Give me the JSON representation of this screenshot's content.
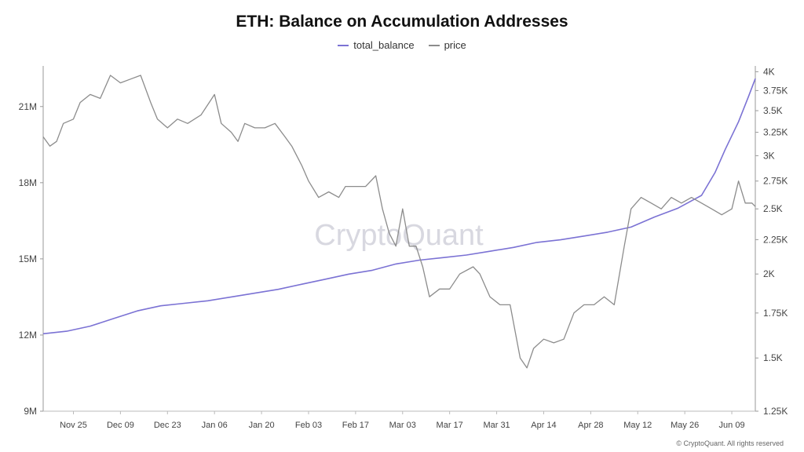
{
  "title": "ETH: Balance on Accumulation Addresses",
  "footer": "© CryptoQuant. All rights reserved",
  "watermark": "CryptoQuant",
  "colors": {
    "total_balance": "#7b72d4",
    "price": "#8c8c8c",
    "axis": "#999999"
  },
  "chart_data": {
    "type": "line",
    "title": "ETH: Balance on Accumulation Addresses",
    "legend_position": "top-center",
    "grid": false,
    "x_ticks": [
      "Nov 25",
      "Dec 09",
      "Dec 23",
      "Jan 06",
      "Jan 20",
      "Feb 03",
      "Feb 17",
      "Mar 03",
      "Mar 17",
      "Mar 31",
      "Apr 14",
      "Apr 28",
      "May 12",
      "May 26",
      "Jun 09"
    ],
    "x_range": [
      "2024-11-16",
      "2025-06-16"
    ],
    "y_left": {
      "ticks": [
        "9M",
        "12M",
        "15M",
        "18M",
        "21M"
      ],
      "range": [
        9,
        22.6
      ],
      "unit": "M"
    },
    "y_right": {
      "ticks": [
        "1.25K",
        "1.5K",
        "1.75K",
        "2K",
        "2.25K",
        "2.5K",
        "2.75K",
        "3K",
        "3.25K",
        "3.5K",
        "3.75K",
        "4K"
      ],
      "range": [
        1.25,
        4.08
      ],
      "unit": "K",
      "scale": "log"
    },
    "series": [
      {
        "name": "total_balance",
        "axis": "left",
        "points": [
          [
            "2024-11-16",
            12.05
          ],
          [
            "2024-11-23",
            12.15
          ],
          [
            "2024-11-30",
            12.35
          ],
          [
            "2024-12-07",
            12.65
          ],
          [
            "2024-12-14",
            12.95
          ],
          [
            "2024-12-21",
            13.15
          ],
          [
            "2024-12-28",
            13.25
          ],
          [
            "2025-01-04",
            13.35
          ],
          [
            "2025-01-11",
            13.5
          ],
          [
            "2025-01-18",
            13.65
          ],
          [
            "2025-01-25",
            13.8
          ],
          [
            "2025-02-01",
            14.0
          ],
          [
            "2025-02-08",
            14.2
          ],
          [
            "2025-02-15",
            14.4
          ],
          [
            "2025-02-22",
            14.55
          ],
          [
            "2025-03-01",
            14.8
          ],
          [
            "2025-03-08",
            14.95
          ],
          [
            "2025-03-15",
            15.05
          ],
          [
            "2025-03-22",
            15.15
          ],
          [
            "2025-03-29",
            15.3
          ],
          [
            "2025-04-05",
            15.45
          ],
          [
            "2025-04-12",
            15.65
          ],
          [
            "2025-04-19",
            15.75
          ],
          [
            "2025-04-26",
            15.9
          ],
          [
            "2025-05-03",
            16.05
          ],
          [
            "2025-05-10",
            16.25
          ],
          [
            "2025-05-17",
            16.65
          ],
          [
            "2025-05-24",
            17.0
          ],
          [
            "2025-05-31",
            17.5
          ],
          [
            "2025-06-04",
            18.4
          ],
          [
            "2025-06-07",
            19.3
          ],
          [
            "2025-06-11",
            20.4
          ],
          [
            "2025-06-14",
            21.4
          ],
          [
            "2025-06-16",
            22.1
          ]
        ]
      },
      {
        "name": "price",
        "axis": "right",
        "points": [
          [
            "2024-11-16",
            3.2
          ],
          [
            "2024-11-18",
            3.1
          ],
          [
            "2024-11-20",
            3.15
          ],
          [
            "2024-11-22",
            3.35
          ],
          [
            "2024-11-25",
            3.4
          ],
          [
            "2024-11-27",
            3.6
          ],
          [
            "2024-11-30",
            3.7
          ],
          [
            "2024-12-03",
            3.65
          ],
          [
            "2024-12-06",
            3.95
          ],
          [
            "2024-12-09",
            3.85
          ],
          [
            "2024-12-12",
            3.9
          ],
          [
            "2024-12-15",
            3.95
          ],
          [
            "2024-12-18",
            3.6
          ],
          [
            "2024-12-20",
            3.4
          ],
          [
            "2024-12-23",
            3.3
          ],
          [
            "2024-12-26",
            3.4
          ],
          [
            "2024-12-29",
            3.35
          ],
          [
            "2025-01-02",
            3.45
          ],
          [
            "2025-01-06",
            3.7
          ],
          [
            "2025-01-08",
            3.35
          ],
          [
            "2025-01-11",
            3.25
          ],
          [
            "2025-01-13",
            3.15
          ],
          [
            "2025-01-15",
            3.35
          ],
          [
            "2025-01-18",
            3.3
          ],
          [
            "2025-01-21",
            3.3
          ],
          [
            "2025-01-24",
            3.35
          ],
          [
            "2025-01-27",
            3.2
          ],
          [
            "2025-01-29",
            3.1
          ],
          [
            "2025-02-01",
            2.9
          ],
          [
            "2025-02-03",
            2.75
          ],
          [
            "2025-02-06",
            2.6
          ],
          [
            "2025-02-09",
            2.65
          ],
          [
            "2025-02-12",
            2.6
          ],
          [
            "2025-02-14",
            2.7
          ],
          [
            "2025-02-17",
            2.7
          ],
          [
            "2025-02-20",
            2.7
          ],
          [
            "2025-02-23",
            2.8
          ],
          [
            "2025-02-25",
            2.5
          ],
          [
            "2025-02-27",
            2.3
          ],
          [
            "2025-03-01",
            2.2
          ],
          [
            "2025-03-03",
            2.5
          ],
          [
            "2025-03-05",
            2.2
          ],
          [
            "2025-03-07",
            2.2
          ],
          [
            "2025-03-09",
            2.05
          ],
          [
            "2025-03-11",
            1.85
          ],
          [
            "2025-03-14",
            1.9
          ],
          [
            "2025-03-17",
            1.9
          ],
          [
            "2025-03-20",
            2.0
          ],
          [
            "2025-03-24",
            2.05
          ],
          [
            "2025-03-26",
            2.0
          ],
          [
            "2025-03-29",
            1.85
          ],
          [
            "2025-04-01",
            1.8
          ],
          [
            "2025-04-04",
            1.8
          ],
          [
            "2025-04-07",
            1.5
          ],
          [
            "2025-04-09",
            1.45
          ],
          [
            "2025-04-11",
            1.55
          ],
          [
            "2025-04-14",
            1.6
          ],
          [
            "2025-04-17",
            1.58
          ],
          [
            "2025-04-20",
            1.6
          ],
          [
            "2025-04-23",
            1.75
          ],
          [
            "2025-04-26",
            1.8
          ],
          [
            "2025-04-29",
            1.8
          ],
          [
            "2025-05-02",
            1.85
          ],
          [
            "2025-05-05",
            1.8
          ],
          [
            "2025-05-08",
            2.2
          ],
          [
            "2025-05-10",
            2.5
          ],
          [
            "2025-05-13",
            2.6
          ],
          [
            "2025-05-16",
            2.55
          ],
          [
            "2025-05-19",
            2.5
          ],
          [
            "2025-05-22",
            2.6
          ],
          [
            "2025-05-25",
            2.55
          ],
          [
            "2025-05-28",
            2.6
          ],
          [
            "2025-05-31",
            2.55
          ],
          [
            "2025-06-03",
            2.5
          ],
          [
            "2025-06-06",
            2.45
          ],
          [
            "2025-06-09",
            2.5
          ],
          [
            "2025-06-11",
            2.75
          ],
          [
            "2025-06-13",
            2.55
          ],
          [
            "2025-06-15",
            2.55
          ],
          [
            "2025-06-16",
            2.52
          ]
        ]
      }
    ]
  }
}
